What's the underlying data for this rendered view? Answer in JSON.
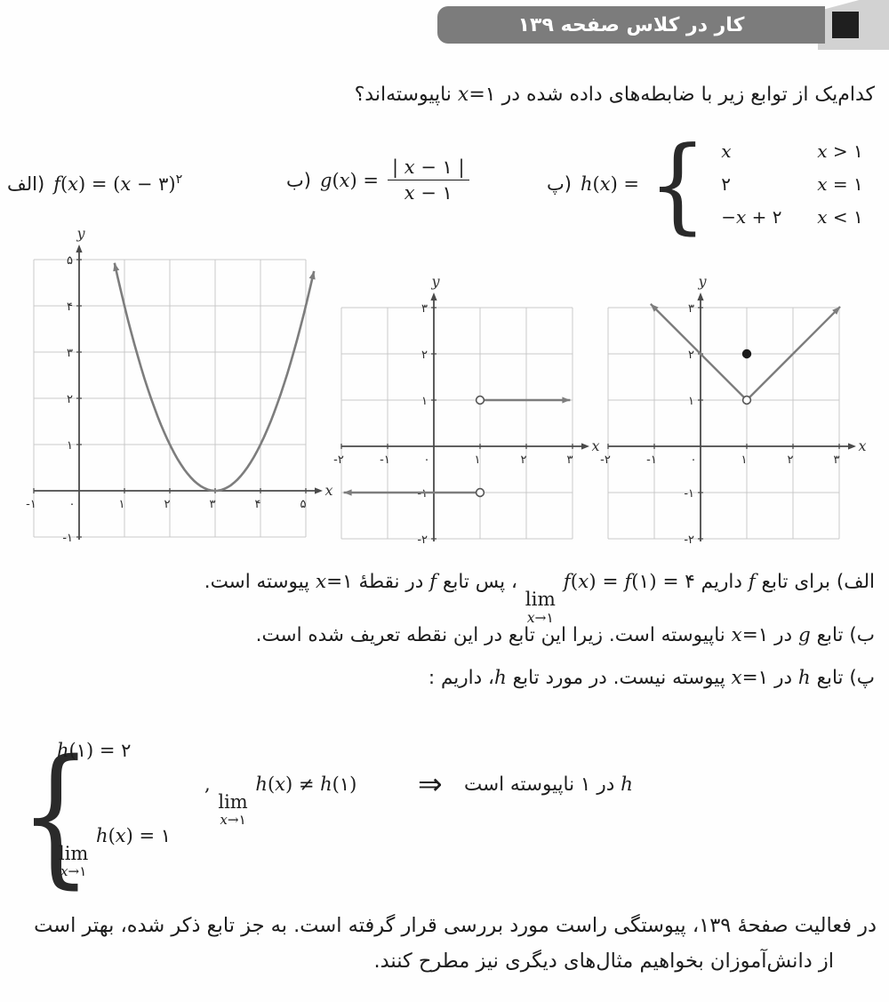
{
  "colors": {
    "paper": "#fefefe",
    "text": "#1c1c1c",
    "badge_gray": "#7c7c7c",
    "badge_light": "#d2d2d2",
    "badge_square": "#1f1f1f",
    "grid": "#c9c9c9",
    "axis": "#4a4a4a",
    "curve": "#7d7d7d"
  },
  "header": {
    "badge_label": "کار در کلاس صفحه ۱۳۹"
  },
  "question": {
    "segments": [
      {
        "t": "fa",
        "v": "کدام‌یک از توابع زیر با ضابطه‌های داده شده در "
      },
      {
        "t": "m",
        "v": "x=۱"
      },
      {
        "t": "fa",
        "v": " ناپیوسته‌اند؟"
      }
    ]
  },
  "definitions": {
    "a": {
      "label": "الف)",
      "formula": "f(x) = (x − ۳)^۲"
    },
    "b": {
      "label": "ب)",
      "lhs": "g(x) =",
      "num": "| x − ۱ |",
      "den": "x − ۱"
    },
    "p": {
      "label": "پ)",
      "lhs": "h(x) =",
      "cases": [
        {
          "value": "x",
          "cond": "x > ۱"
        },
        {
          "value": "۲",
          "cond": "x = ۱"
        },
        {
          "value": "−x + ۲",
          "cond": "x < ۱"
        }
      ]
    }
  },
  "chart_data": [
    {
      "name": "graph-f",
      "type": "line",
      "function": "f(x) = (x−۳)²",
      "x_range": [
        -1,
        5
      ],
      "y_range": [
        -1,
        5
      ],
      "grid": true,
      "x_label": "x",
      "y_label": "y",
      "x_ticks": [
        [
          -1,
          "-۱"
        ],
        [
          0,
          "۰"
        ],
        [
          1,
          "۱"
        ],
        [
          2,
          "۲"
        ],
        [
          3,
          "۳"
        ],
        [
          4,
          "۴"
        ],
        [
          5,
          "۵"
        ]
      ],
      "y_ticks": [
        [
          -1,
          "-۱"
        ],
        [
          1,
          "۱"
        ],
        [
          2,
          "۲"
        ],
        [
          3,
          "۳"
        ],
        [
          4,
          "۴"
        ],
        [
          5,
          "۵"
        ]
      ],
      "parabola": {
        "vertex": [
          3,
          0
        ],
        "a": 1,
        "from": 0.78,
        "to": 5.18
      }
    },
    {
      "name": "graph-g",
      "type": "line",
      "function": "g(x) = |x−۱|/(x−۱)",
      "x_range": [
        -2,
        3
      ],
      "y_range": [
        -2,
        3
      ],
      "grid": true,
      "x_label": "x",
      "y_label": "y",
      "x_ticks": [
        [
          -2,
          "-۲"
        ],
        [
          -1,
          "-۱"
        ],
        [
          0,
          "۰"
        ],
        [
          1,
          "۱"
        ],
        [
          2,
          "۲"
        ],
        [
          3,
          "۳"
        ]
      ],
      "y_ticks": [
        [
          -2,
          "-۲"
        ],
        [
          -1,
          "-۱"
        ],
        [
          1,
          "۱"
        ],
        [
          2,
          "۲"
        ],
        [
          3,
          "۳"
        ]
      ],
      "rays": [
        {
          "from": [
            1,
            1
          ],
          "to": [
            2.95,
            1
          ]
        },
        {
          "from": [
            1,
            -1
          ],
          "to": [
            -1.95,
            -1
          ]
        }
      ],
      "points": [
        {
          "x": 1,
          "y": 1,
          "open": true
        },
        {
          "x": 1,
          "y": -1,
          "open": true
        }
      ]
    },
    {
      "name": "graph-h",
      "type": "line",
      "function": "h(x)",
      "x_range": [
        -2,
        3
      ],
      "y_range": [
        -2,
        3
      ],
      "grid": true,
      "x_label": "x",
      "y_label": "y",
      "x_ticks": [
        [
          -2,
          "-۲"
        ],
        [
          -1,
          "-۱"
        ],
        [
          0,
          "۰"
        ],
        [
          1,
          "۱"
        ],
        [
          2,
          "۲"
        ],
        [
          3,
          "۳"
        ]
      ],
      "y_ticks": [
        [
          -2,
          "-۲"
        ],
        [
          -1,
          "-۱"
        ],
        [
          1,
          "۱"
        ],
        [
          2,
          "۲"
        ],
        [
          3,
          "۳"
        ]
      ],
      "rays": [
        {
          "from": [
            1,
            1
          ],
          "to": [
            -1.08,
            3.08
          ]
        },
        {
          "from": [
            1,
            1
          ],
          "to": [
            3.02,
            3.02
          ]
        }
      ],
      "points": [
        {
          "x": 1,
          "y": 1,
          "open": true
        },
        {
          "x": 1,
          "y": 2,
          "open": false
        }
      ]
    }
  ],
  "solution": {
    "line_a": {
      "segments": [
        {
          "t": "fa",
          "v": "الف) برای تابع "
        },
        {
          "t": "m",
          "v": "f"
        },
        {
          "t": "fa",
          "v": " داریم "
        },
        {
          "t": "lim",
          "lim": "lim",
          "sub": "x→۱",
          "after": " f(x) = f(۱) = ۴"
        },
        {
          "t": "fa",
          "v": " ، پس تابع "
        },
        {
          "t": "m",
          "v": "f"
        },
        {
          "t": "fa",
          "v": " در نقطهٔ "
        },
        {
          "t": "m",
          "v": "x=۱"
        },
        {
          "t": "fa",
          "v": " پیوسته است."
        }
      ]
    },
    "line_b": {
      "segments": [
        {
          "t": "fa",
          "v": "ب) تابع "
        },
        {
          "t": "m",
          "v": "g"
        },
        {
          "t": "fa",
          "v": " در "
        },
        {
          "t": "m",
          "v": "x=۱"
        },
        {
          "t": "fa",
          "v": " ناپیوسته است. زیرا این تابع در این نقطه تعریف شده است."
        }
      ]
    },
    "line_p": {
      "segments": [
        {
          "t": "fa",
          "v": "پ) تابع "
        },
        {
          "t": "m",
          "v": "h"
        },
        {
          "t": "fa",
          "v": " در "
        },
        {
          "t": "m",
          "v": "x=۱"
        },
        {
          "t": "fa",
          "v": " پیوسته نیست. در مورد تابع "
        },
        {
          "t": "m",
          "v": "h"
        },
        {
          "t": "fa",
          "v": "، داریم :"
        }
      ]
    },
    "system": {
      "eq_top": "h(۱) = ۲",
      "eq_bottom": {
        "lim": "lim",
        "sub": "x→۱",
        "after": " h(x) = ۱"
      },
      "middle": {
        "before": ", ",
        "lim": "lim",
        "sub": "x→۱",
        "after": " h(x) ≠ h(۱)"
      },
      "implies": "⇒",
      "conclusion": {
        "segments": [
          {
            "t": "m",
            "v": "h"
          },
          {
            "t": "fa",
            "v": " در ۱ ناپیوسته است"
          }
        ]
      }
    }
  },
  "footer": {
    "line1": "در فعالیت صفحهٔ ۱۳۹، پیوستگی راست مورد بررسی قرار گرفته است. به جز تابع ذکر شده، بهتر است",
    "line2": "از دانش‌آموزان بخواهیم مثال‌های دیگری نیز مطرح کنند."
  }
}
